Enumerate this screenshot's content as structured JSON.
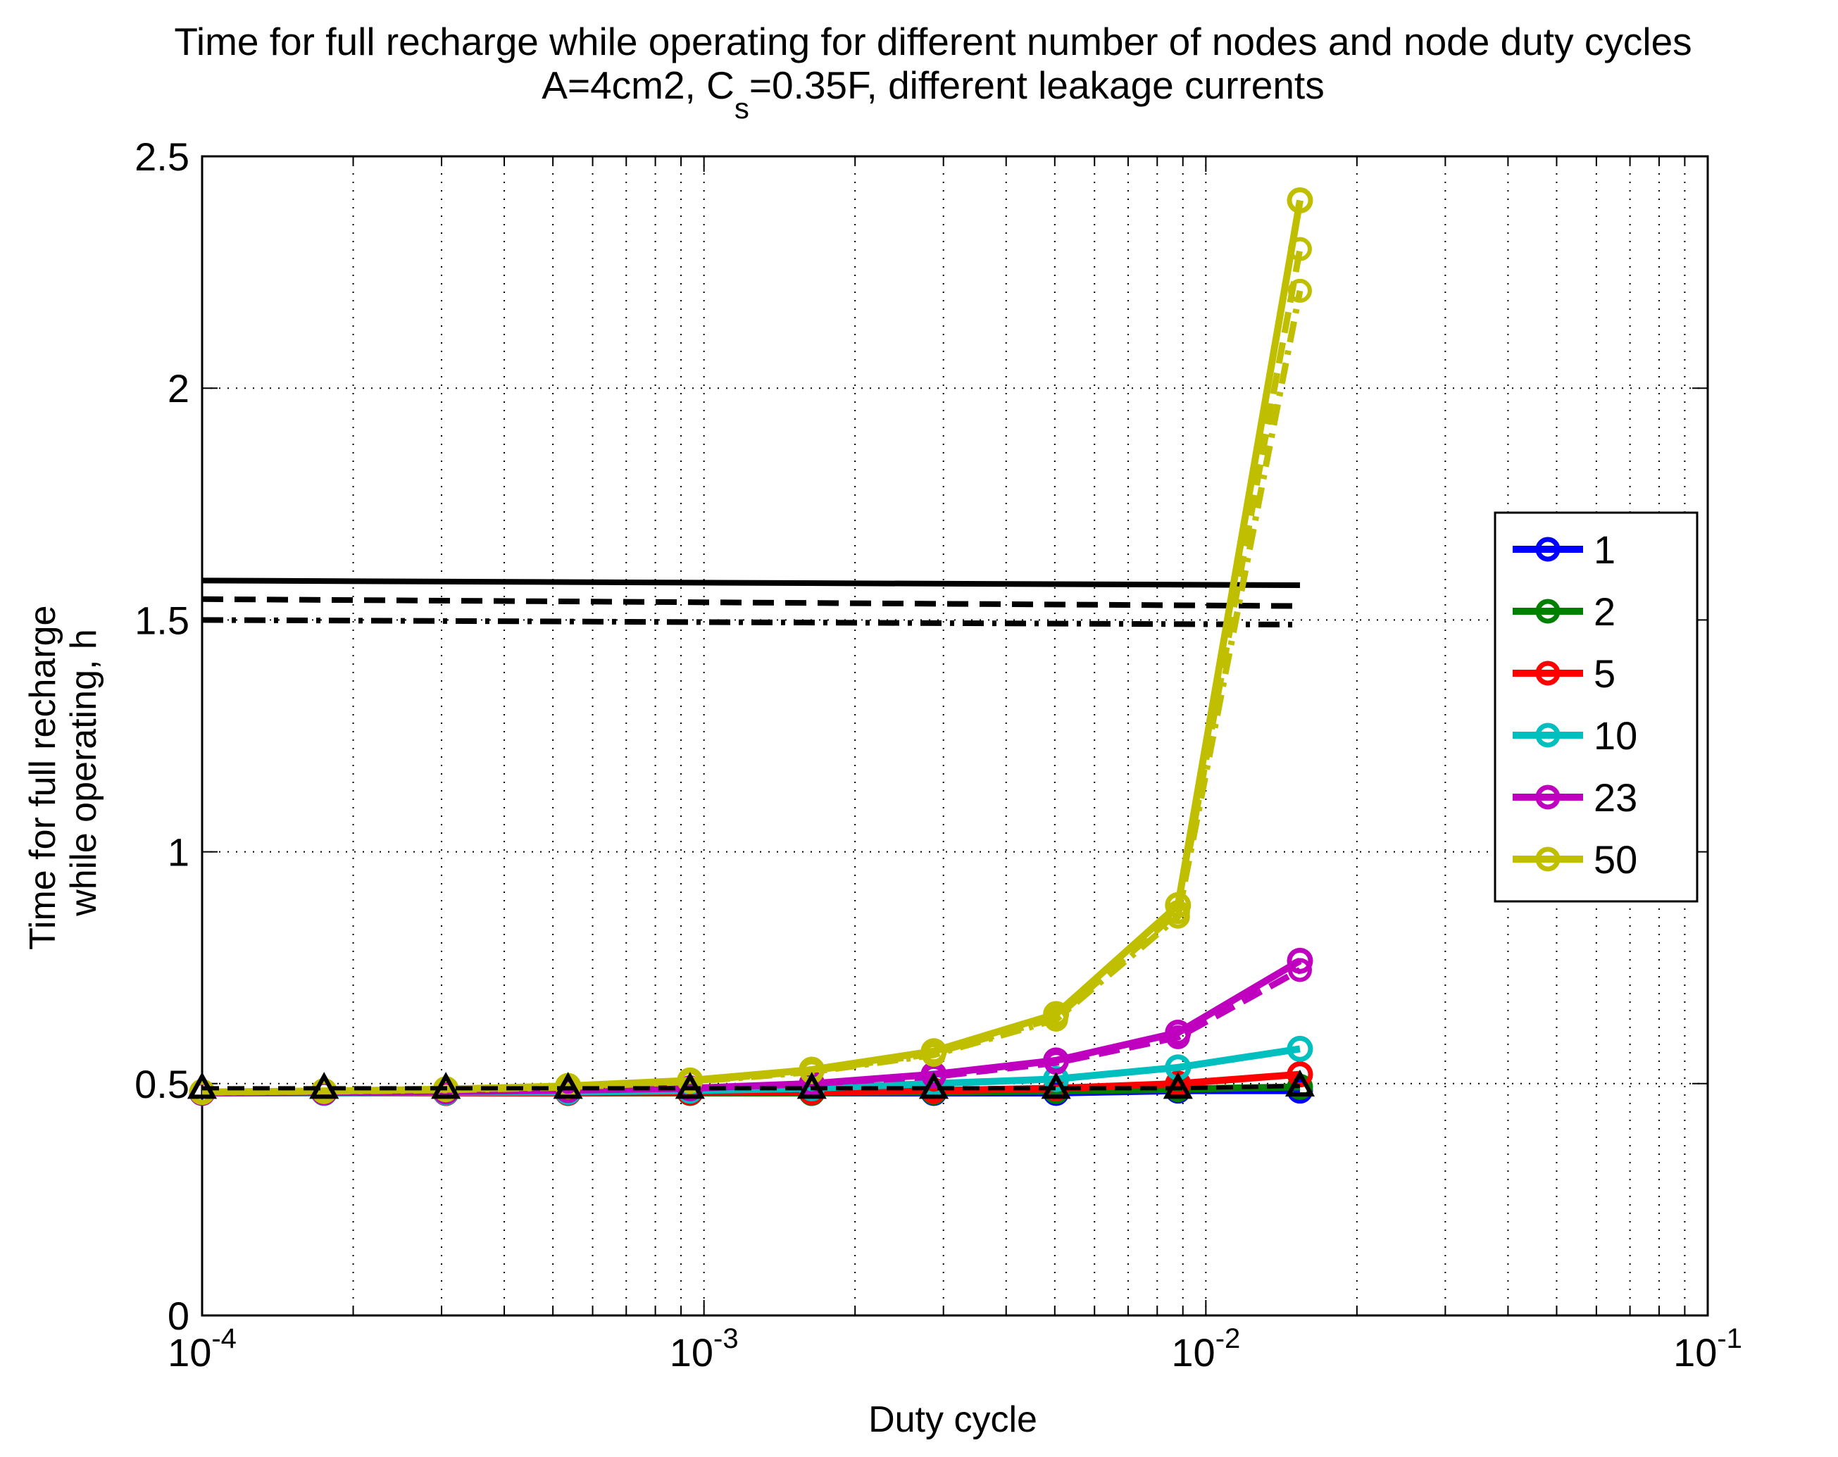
{
  "chart_data": {
    "type": "line",
    "title": "Time for full recharge while operating for different number of nodes and node duty cycles",
    "subtitle": {
      "prefix": "A=4cm2, C",
      "subscript": "s",
      "suffix": "=0.35F, different leakage currents"
    },
    "xlabel": "Duty cycle",
    "ylabel_lines": [
      "Time for full recharge",
      "while operating, h"
    ],
    "xscale": "log",
    "xlim": [
      0.0001,
      0.1
    ],
    "ylim": [
      0,
      2.5
    ],
    "grid": true,
    "legend_position": "right",
    "x_ticks": [
      {
        "value": 0.0001,
        "base": "10",
        "exp": "-4"
      },
      {
        "value": 0.001,
        "base": "10",
        "exp": "-3"
      },
      {
        "value": 0.01,
        "base": "10",
        "exp": "-2"
      },
      {
        "value": 0.1,
        "base": "10",
        "exp": "-1"
      }
    ],
    "y_ticks": [
      {
        "value": 0,
        "label": "0"
      },
      {
        "value": 0.5,
        "label": "0.5"
      },
      {
        "value": 1,
        "label": "1"
      },
      {
        "value": 1.5,
        "label": "1.5"
      },
      {
        "value": 2,
        "label": "2"
      },
      {
        "value": 2.5,
        "label": "2.5"
      }
    ],
    "x": [
      0.0001,
      0.000175,
      0.000306,
      0.000536,
      0.000938,
      0.00164,
      0.00287,
      0.00503,
      0.0088,
      0.0154
    ],
    "series": [
      {
        "name": "1",
        "color": "#0000ff",
        "values": [
          0.48,
          0.48,
          0.48,
          0.48,
          0.48,
          0.48,
          0.48,
          0.48,
          0.485,
          0.485
        ]
      },
      {
        "name": "2",
        "color": "#008000",
        "values": [
          0.48,
          0.48,
          0.48,
          0.48,
          0.48,
          0.48,
          0.482,
          0.484,
          0.488,
          0.493
        ]
      },
      {
        "name": "5",
        "color": "#ff0000",
        "values": [
          0.48,
          0.48,
          0.48,
          0.48,
          0.481,
          0.482,
          0.485,
          0.49,
          0.5,
          0.52
        ]
      },
      {
        "name": "10",
        "color": "#00bfbf",
        "values": [
          0.48,
          0.48,
          0.481,
          0.482,
          0.485,
          0.49,
          0.5,
          0.51,
          0.535,
          0.575
        ]
      },
      {
        "name": "23",
        "color": "#bf00bf",
        "values": [
          0.48,
          0.481,
          0.483,
          0.486,
          0.49,
          0.5,
          0.52,
          0.55,
          0.61,
          0.765
        ]
      },
      {
        "name": "50",
        "color": "#bfbf00",
        "values": [
          0.482,
          0.484,
          0.488,
          0.495,
          0.507,
          0.53,
          0.57,
          0.65,
          0.885,
          2.405
        ]
      }
    ],
    "leakage_variant_values": {
      "23": [
        [
          0.48,
          0.481,
          0.483,
          0.486,
          0.49,
          0.5,
          0.515,
          0.545,
          0.6,
          0.745
        ]
      ],
      "50": [
        [
          0.482,
          0.484,
          0.487,
          0.493,
          0.505,
          0.527,
          0.565,
          0.642,
          0.87,
          2.3
        ],
        [
          0.481,
          0.483,
          0.486,
          0.492,
          0.504,
          0.525,
          0.562,
          0.638,
          0.86,
          2.21
        ]
      ]
    },
    "triangle_series": {
      "x": [
        0.0001,
        0.000175,
        0.000306,
        0.000536,
        0.000938,
        0.00164,
        0.00287,
        0.00503,
        0.0088,
        0.0154
      ],
      "values": [
        0.49,
        0.49,
        0.49,
        0.49,
        0.49,
        0.49,
        0.49,
        0.49,
        0.49,
        0.495
      ]
    },
    "black_lines": [
      {
        "style": "solid",
        "x": [
          0.0001,
          0.0154
        ],
        "values": [
          1.585,
          1.575
        ]
      },
      {
        "style": "dashed",
        "x": [
          0.0001,
          0.0154
        ],
        "values": [
          1.545,
          1.53
        ]
      },
      {
        "style": "dashdot",
        "x": [
          0.0001,
          0.0154
        ],
        "values": [
          1.5,
          1.49
        ]
      }
    ]
  }
}
